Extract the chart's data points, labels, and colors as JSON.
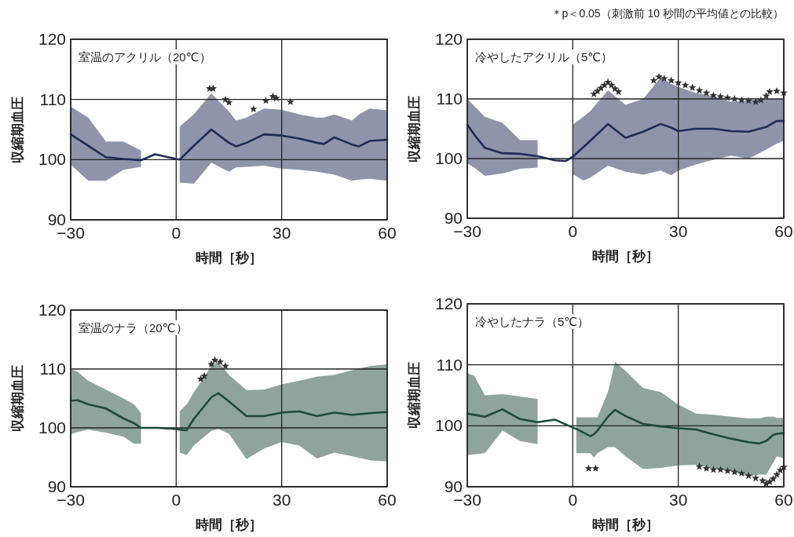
{
  "chart_data": [
    {
      "type": "line",
      "title": "室温のアクリル（20℃）",
      "xlabel": "時間［秒］",
      "ylabel": "収縮期血圧",
      "xlim": [
        -30,
        60
      ],
      "ylim": [
        90,
        120
      ],
      "xticks": [
        -30,
        0,
        30,
        60
      ],
      "yticks": [
        90,
        100,
        110,
        120
      ],
      "grid": true,
      "series": [
        {
          "type": "line",
          "color": "#1f2a55",
          "x": [
            -30,
            -25,
            -20,
            -15,
            -10,
            -6,
            -3,
            0,
            1,
            5,
            10,
            15,
            17,
            20,
            25,
            30,
            35,
            40,
            42,
            45,
            50,
            52,
            55,
            60
          ],
          "values": [
            104.2,
            102.3,
            100.4,
            100.1,
            99.9,
            100.9,
            100.5,
            100.1,
            100.0,
            102.3,
            105,
            102.8,
            102.2,
            102.8,
            104.2,
            104,
            103.5,
            102.8,
            102.6,
            103.7,
            102.5,
            102.2,
            103.1,
            103.3
          ],
          "upper": [
            108.8,
            107,
            103,
            103,
            101.5,
            null,
            null,
            null,
            105.5,
            107.5,
            111,
            108,
            106.5,
            107,
            108.5,
            108.3,
            107.5,
            107,
            107,
            107.5,
            106.5,
            107.5,
            108.5,
            108.2
          ],
          "lower": [
            99.2,
            96.5,
            96.5,
            98.3,
            98.8,
            null,
            null,
            null,
            96.2,
            96.0,
            99.5,
            98,
            98.7,
            98.8,
            99,
            98.5,
            98.3,
            98,
            97.8,
            97.5,
            96.5,
            96.7,
            96.8,
            96.5
          ]
        },
        {
          "type": "scatter",
          "marker": "star",
          "color": "#333333",
          "x": [
            9.5,
            10.5,
            14,
            15,
            22,
            25.5,
            27.5,
            28.5,
            32.5
          ],
          "values": [
            111.8,
            111.8,
            110.0,
            109.5,
            108.4,
            109.8,
            110.5,
            110.2,
            109.6
          ]
        }
      ]
    },
    {
      "type": "line",
      "title": "冷やしたアクリル（5℃）",
      "xlabel": "時間［秒］",
      "ylabel": "収縮期血圧",
      "xlim": [
        -30,
        60
      ],
      "ylim": [
        90,
        120
      ],
      "xticks": [
        -30,
        0,
        30,
        60
      ],
      "yticks": [
        90,
        100,
        110,
        120
      ],
      "grid": true,
      "annotations": [
        "＊p＜0.05（刺激前 10 秒間の平均値との比較）"
      ],
      "series": [
        {
          "type": "line",
          "color": "#1f2a55",
          "x": [
            -30,
            -28,
            -25,
            -20,
            -15,
            -10,
            -5,
            -2,
            0,
            3,
            5,
            10,
            15,
            20,
            25,
            28,
            30,
            35,
            40,
            45,
            50,
            55,
            58,
            60
          ],
          "values": [
            105.7,
            104,
            101.8,
            100.9,
            100.8,
            100.4,
            99.7,
            99.6,
            100.3,
            101.9,
            103,
            105.8,
            103.5,
            104.5,
            105.8,
            105.2,
            104.6,
            105,
            105,
            104.6,
            104.5,
            105.3,
            106.3,
            106.3
          ],
          "upper": [
            110,
            108.8,
            107,
            106,
            103.1,
            103.1,
            null,
            null,
            105.7,
            107,
            108,
            111.4,
            109,
            110,
            113.6,
            112.5,
            112,
            111,
            110.5,
            109.5,
            109.7,
            110,
            110,
            110
          ],
          "lower": [
            99.2,
            98.5,
            97.1,
            97.5,
            98.3,
            98.5,
            null,
            null,
            97.4,
            96.3,
            96.8,
            98.8,
            97.8,
            97.3,
            98,
            97.2,
            98,
            99,
            99.8,
            100.5,
            100,
            101.5,
            102.5,
            103
          ]
        },
        {
          "type": "scatter",
          "marker": "star",
          "color": "#333333",
          "x": [
            6,
            7,
            8,
            9,
            10,
            11,
            12,
            13,
            23,
            24.5,
            26,
            28,
            30,
            32,
            34,
            36,
            38,
            40,
            42,
            44,
            46,
            48,
            50,
            52,
            53.5,
            55,
            56,
            58,
            60
          ],
          "values": [
            110.8,
            111.3,
            111.8,
            112.3,
            112.8,
            112.3,
            111.7,
            111.2,
            113.1,
            113.7,
            113.4,
            113.1,
            112.7,
            112.3,
            111.9,
            111.4,
            111.0,
            110.6,
            110.4,
            110.2,
            110.0,
            109.8,
            109.7,
            109.5,
            109.8,
            110.5,
            111.2,
            111.3,
            111.0
          ]
        }
      ]
    },
    {
      "type": "line",
      "title": "室温のナラ（20℃）",
      "xlabel": "時間［秒］",
      "ylabel": "収縮期血圧",
      "xlim": [
        -30,
        60
      ],
      "ylim": [
        90,
        120
      ],
      "xticks": [
        -30,
        0,
        30,
        60
      ],
      "yticks": [
        90,
        100,
        110,
        120
      ],
      "grid": true,
      "series": [
        {
          "type": "line",
          "color": "#1d4a3c",
          "x": [
            -30,
            -28,
            -25,
            -20,
            -15,
            -12,
            -10,
            -5,
            0,
            1,
            3,
            5,
            10,
            12,
            15,
            20,
            25,
            30,
            35,
            40,
            45,
            50,
            55,
            60
          ],
          "values": [
            104.6,
            104.7,
            104,
            103.3,
            101.6,
            100.8,
            100,
            100,
            99.8,
            99.7,
            99.6,
            101.5,
            105.2,
            105.9,
            104.5,
            102,
            102,
            102.6,
            102.8,
            102,
            102.6,
            102.2,
            102.5,
            102.7
          ],
          "upper": [
            110,
            109.5,
            108,
            106.5,
            105,
            104,
            102.5,
            null,
            null,
            102.8,
            104,
            106,
            110.5,
            111.2,
            109,
            106.4,
            106.5,
            107.4,
            108,
            108.7,
            109,
            109.8,
            110.5,
            110.8
          ],
          "lower": [
            98.9,
            99.3,
            99.7,
            99.2,
            98.5,
            97.3,
            97.3,
            null,
            null,
            95.8,
            95.4,
            97,
            99.5,
            99.8,
            99,
            94.7,
            96.5,
            97.6,
            97,
            94.8,
            95.8,
            95.2,
            94.5,
            94.3
          ]
        },
        {
          "type": "scatter",
          "marker": "star",
          "color": "#333333",
          "x": [
            7,
            8,
            10,
            11,
            12.5,
            14
          ],
          "values": [
            108.3,
            108.8,
            110.8,
            111.5,
            111.2,
            110.5
          ]
        }
      ]
    },
    {
      "type": "line",
      "title": "冷やしたナラ（5℃）",
      "xlabel": "時間［秒］",
      "ylabel": "収縮期血圧",
      "xlim": [
        -30,
        60
      ],
      "ylim": [
        90,
        120
      ],
      "xticks": [
        -30,
        0,
        30,
        60
      ],
      "yticks": [
        90,
        100,
        110,
        120
      ],
      "grid": true,
      "series": [
        {
          "type": "line",
          "color": "#1d4a3c",
          "x": [
            -30,
            -28,
            -25,
            -20,
            -15,
            -10,
            -5,
            0,
            1,
            5,
            6,
            7,
            10,
            12,
            15,
            20,
            25,
            30,
            35,
            40,
            45,
            50,
            53,
            55,
            57,
            58,
            60
          ],
          "values": [
            102,
            101.8,
            101.5,
            102.7,
            101.1,
            100.6,
            101,
            99.7,
            99.5,
            98.3,
            98.6,
            99.2,
            101.5,
            102.6,
            101.6,
            100.3,
            99.9,
            99.6,
            99.4,
            98.6,
            97.9,
            97.3,
            97.1,
            97.5,
            98.5,
            98.7,
            98.8
          ],
          "upper": [
            108.6,
            108.2,
            105,
            105.2,
            104.8,
            104.4,
            null,
            null,
            101.4,
            101.4,
            101.4,
            101.4,
            105.5,
            110.5,
            109,
            106.2,
            105.5,
            103.5,
            102,
            101.8,
            101.5,
            101.2,
            101.2,
            101.5,
            101.5,
            101.3,
            101.3
          ],
          "lower": [
            95.2,
            95.3,
            95.5,
            99.2,
            97.5,
            97,
            null,
            null,
            95.5,
            95.5,
            94.8,
            95.5,
            96.5,
            96.5,
            95,
            92.9,
            93.1,
            93.5,
            93.6,
            93,
            92.5,
            91.7,
            92,
            92,
            94,
            95,
            94.7
          ]
        },
        {
          "type": "scatter",
          "marker": "star",
          "color": "#333333",
          "x": [
            4.5,
            6.5,
            36,
            38,
            40,
            42,
            44,
            46,
            48,
            50,
            52,
            54,
            55,
            56,
            57,
            58,
            59,
            60
          ],
          "values": [
            93,
            93,
            93.3,
            93,
            92.8,
            92.8,
            92.6,
            92.4,
            92.2,
            91.8,
            91.4,
            91,
            90.5,
            90.8,
            91.3,
            92,
            92.7,
            93.2
          ]
        }
      ]
    }
  ]
}
